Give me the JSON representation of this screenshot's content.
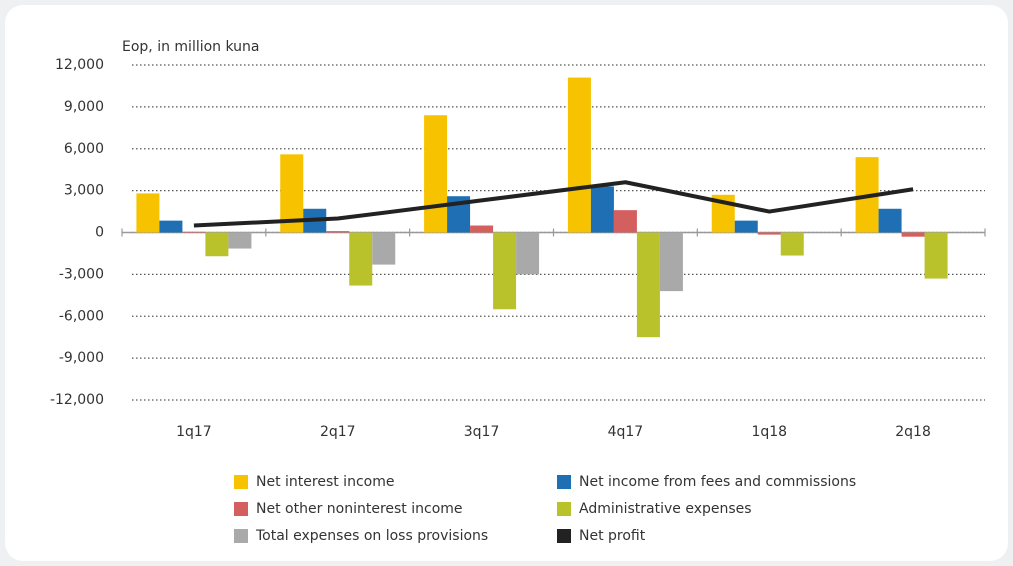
{
  "chart_data": {
    "type": "bar",
    "y_axis_label": "Eop, in million kuna",
    "categories": [
      "1q17",
      "2q17",
      "3q17",
      "4q17",
      "1q18",
      "2q18"
    ],
    "series": [
      {
        "name": "Net interest income",
        "color": "#f7c200",
        "values": [
          2800,
          5600,
          8400,
          11100,
          2700,
          5400
        ]
      },
      {
        "name": "Net income from fees and commissions",
        "color": "#1f6fb4",
        "values": [
          850,
          1700,
          2600,
          3300,
          850,
          1700
        ]
      },
      {
        "name": "Net other noninterest income",
        "color": "#d45f5f",
        "values": [
          50,
          100,
          500,
          1600,
          -150,
          -300
        ]
      },
      {
        "name": "Administrative expenses",
        "color": "#b9c22a",
        "values": [
          -1700,
          -3800,
          -5500,
          -7500,
          -1650,
          -3300
        ]
      },
      {
        "name": "Total expenses on loss provisions",
        "color": "#a9a9a9",
        "values": [
          -1150,
          -2300,
          -3000,
          -4200,
          0,
          0
        ]
      },
      {
        "name": "Net profit",
        "color": "#222222",
        "type": "line",
        "values": [
          500,
          1000,
          2300,
          3600,
          1500,
          3100
        ]
      }
    ],
    "ylim": [
      -12000,
      12000
    ],
    "yticks": [
      {
        "value": -12000,
        "label": "-12,000"
      },
      {
        "value": -9000,
        "label": "-9,000"
      },
      {
        "value": -6000,
        "label": "-6,000"
      },
      {
        "value": -3000,
        "label": "-3,000"
      },
      0,
      {
        "value": 3000,
        "label": "3,000"
      },
      {
        "value": 6000,
        "label": "6,000"
      },
      {
        "value": 9000,
        "label": "9,000"
      },
      {
        "value": 12000,
        "label": "12,000"
      }
    ],
    "grid": true
  }
}
